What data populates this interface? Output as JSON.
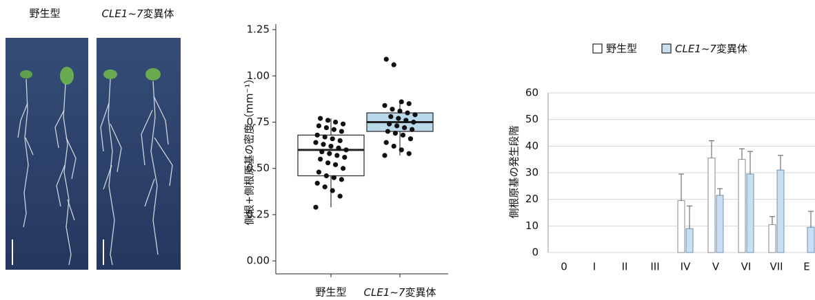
{
  "photos": {
    "labels": [
      "野生型",
      "CLE1~7変異体"
    ]
  },
  "chart_data": [
    {
      "type": "box",
      "y_label": "側根+側根原基の密度（mm⁻¹）",
      "categories": [
        "野生型",
        "CLE1~7変異体"
      ],
      "colors": [
        "#ffffff",
        "#b9d9ea"
      ],
      "ylim": [
        -0.07,
        1.28
      ],
      "yticks": [
        {
          "value": 0,
          "label": "0.00"
        },
        0.25,
        {
          "value": 0.5,
          "label": "0.50"
        },
        0.75,
        {
          "value": 1,
          "label": "1.00"
        },
        1.25
      ],
      "boxes": [
        {
          "min": 0.29,
          "q1": 0.46,
          "median": 0.6,
          "q3": 0.68,
          "max": 0.77,
          "points": [
            0.29,
            0.35,
            0.38,
            0.4,
            0.42,
            0.44,
            0.45,
            0.46,
            0.48,
            0.5,
            0.52,
            0.53,
            0.55,
            0.56,
            0.57,
            0.58,
            0.59,
            0.6,
            0.61,
            0.62,
            0.63,
            0.64,
            0.65,
            0.66,
            0.67,
            0.68,
            0.7,
            0.71,
            0.72,
            0.73,
            0.74,
            0.75,
            0.76,
            0.77
          ]
        },
        {
          "min": 0.57,
          "q1": 0.7,
          "median": 0.75,
          "q3": 0.8,
          "max": 0.86,
          "points": [
            0.57,
            0.58,
            0.6,
            0.62,
            0.64,
            0.66,
            0.68,
            0.69,
            0.7,
            0.71,
            0.72,
            0.73,
            0.74,
            0.75,
            0.76,
            0.77,
            0.78,
            0.79,
            0.8,
            0.81,
            0.82,
            0.84,
            0.85,
            0.86,
            1.06,
            1.09
          ]
        }
      ]
    },
    {
      "type": "bar",
      "y_label": "側根原基の発生段階",
      "categories": [
        "0",
        "I",
        "II",
        "III",
        "IV",
        "V",
        "VI",
        "VII",
        "E"
      ],
      "series": [
        {
          "name": "野生型",
          "color": "#ffffff",
          "edge": "#8a8a8a",
          "values": [
            0,
            0,
            0,
            0,
            19.5,
            35.5,
            35,
            10.5,
            0
          ],
          "errors": [
            0,
            0,
            0,
            0,
            10,
            6.5,
            4,
            3,
            0
          ]
        },
        {
          "name": "CLE1~7変異体",
          "color": "#c7dff0",
          "edge": "#6f93b3",
          "values": [
            0,
            0,
            0,
            0,
            9,
            21.5,
            29.5,
            31,
            9.5
          ],
          "errors": [
            0,
            0,
            0,
            0,
            8.5,
            2.5,
            8.5,
            5.5,
            6
          ]
        }
      ],
      "ylim": [
        0,
        60
      ],
      "yticks": [
        0,
        10,
        20,
        30,
        40,
        50,
        60
      ],
      "grid": true
    }
  ]
}
